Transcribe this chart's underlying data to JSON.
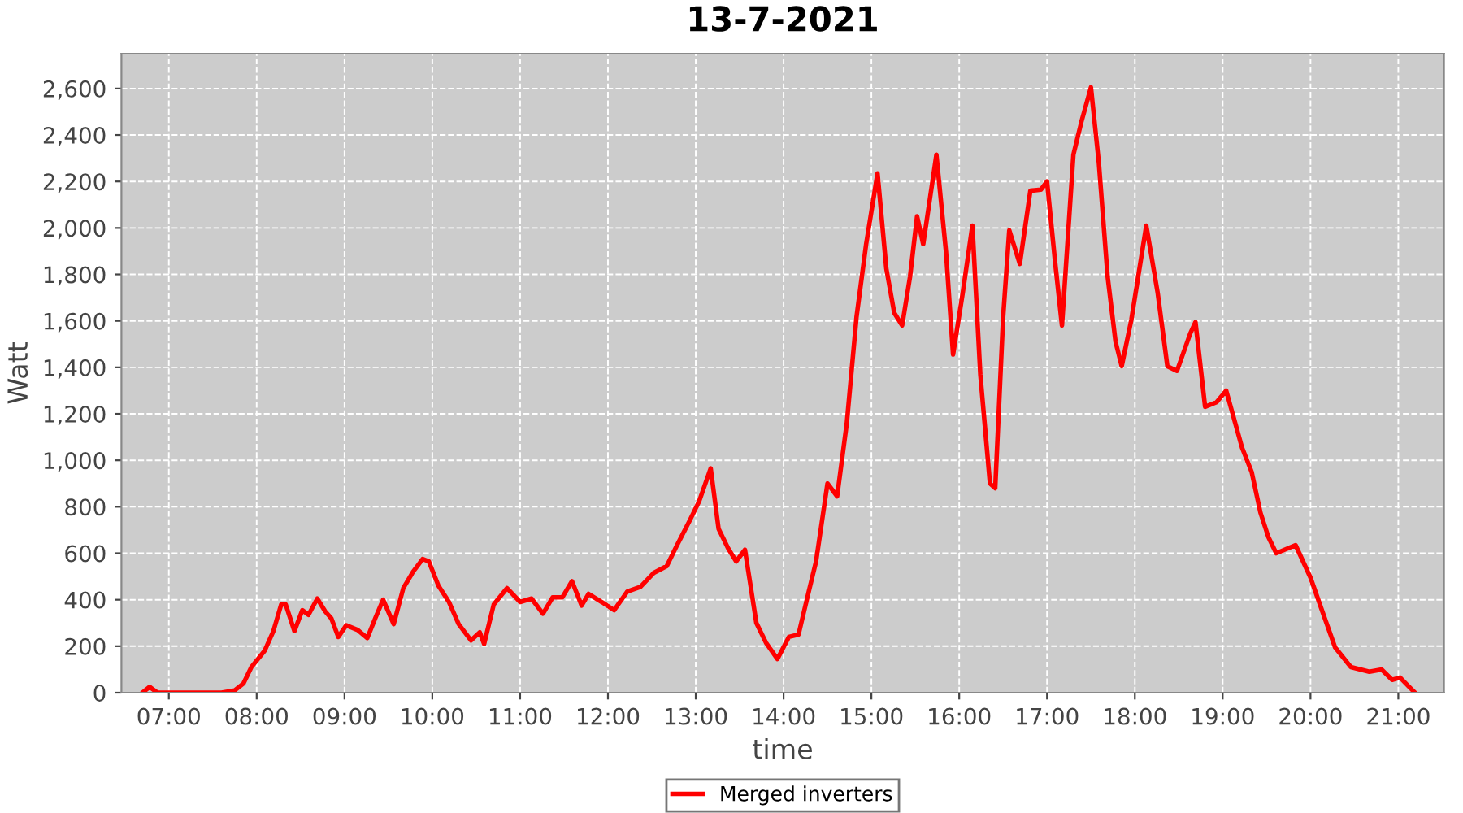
{
  "chart_data": {
    "type": "line",
    "title": "13-7-2021",
    "xlabel": "time",
    "ylabel": "Watt",
    "xlim": [
      6.46,
      21.52
    ],
    "ylim": [
      0,
      2750
    ],
    "xticks": [
      {
        "value": 7,
        "label": "07:00"
      },
      {
        "value": 8,
        "label": "08:00"
      },
      {
        "value": 9,
        "label": "09:00"
      },
      {
        "value": 10,
        "label": "10:00"
      },
      {
        "value": 11,
        "label": "11:00"
      },
      {
        "value": 12,
        "label": "12:00"
      },
      {
        "value": 13,
        "label": "13:00"
      },
      {
        "value": 14,
        "label": "14:00"
      },
      {
        "value": 15,
        "label": "15:00"
      },
      {
        "value": 16,
        "label": "16:00"
      },
      {
        "value": 17,
        "label": "17:00"
      },
      {
        "value": 18,
        "label": "18:00"
      },
      {
        "value": 19,
        "label": "19:00"
      },
      {
        "value": 20,
        "label": "20:00"
      },
      {
        "value": 21,
        "label": "21:00"
      }
    ],
    "yticks": [
      0,
      200,
      400,
      600,
      800,
      {
        "value": 1000,
        "label": "1,000"
      },
      {
        "value": 1200,
        "label": "1,200"
      },
      {
        "value": 1400,
        "label": "1,400"
      },
      {
        "value": 1600,
        "label": "1,600"
      },
      {
        "value": 1800,
        "label": "1,800"
      },
      {
        "value": 2000,
        "label": "2,000"
      },
      {
        "value": 2200,
        "label": "2,200"
      },
      {
        "value": 2400,
        "label": "2,400"
      },
      {
        "value": 2600,
        "label": "2,600"
      }
    ],
    "grid": true,
    "legend": "bottom",
    "marker": "none",
    "line_style": "solid",
    "series": [
      {
        "name": "Merged inverters",
        "color": "#ff0000",
        "x": [
          6.7,
          6.78,
          6.87,
          7.0,
          7.3,
          7.6,
          7.75,
          7.85,
          7.94,
          8.09,
          8.19,
          8.28,
          8.33,
          8.43,
          8.52,
          8.59,
          8.69,
          8.78,
          8.85,
          8.93,
          9.02,
          9.15,
          9.26,
          9.35,
          9.44,
          9.56,
          9.67,
          9.78,
          9.89,
          9.96,
          10.07,
          10.19,
          10.3,
          10.44,
          10.54,
          10.59,
          10.7,
          10.85,
          11.0,
          11.13,
          11.26,
          11.37,
          11.48,
          11.59,
          11.7,
          11.78,
          11.93,
          12.07,
          12.22,
          12.37,
          12.52,
          12.67,
          12.78,
          12.93,
          13.04,
          13.17,
          13.26,
          13.37,
          13.46,
          13.56,
          13.69,
          13.8,
          13.93,
          14.06,
          14.17,
          14.28,
          14.37,
          14.5,
          14.61,
          14.72,
          14.83,
          14.94,
          15.07,
          15.17,
          15.26,
          15.35,
          15.44,
          15.52,
          15.59,
          15.74,
          15.85,
          15.93,
          16.04,
          16.15,
          16.24,
          16.35,
          16.41,
          16.5,
          16.57,
          16.69,
          16.81,
          16.93,
          17.0,
          17.09,
          17.17,
          17.3,
          17.39,
          17.5,
          17.59,
          17.69,
          17.78,
          17.85,
          17.96,
          18.13,
          18.26,
          18.37,
          18.48,
          18.63,
          18.69,
          18.8,
          18.93,
          19.04,
          19.22,
          19.33,
          19.43,
          19.52,
          19.61,
          19.83,
          20.0,
          20.13,
          20.28,
          20.46,
          20.67,
          20.81,
          20.93,
          21.02,
          21.11,
          21.19
        ],
        "values": [
          0,
          25,
          0,
          0,
          0,
          0,
          10,
          40,
          110,
          180,
          265,
          380,
          380,
          265,
          355,
          335,
          405,
          350,
          320,
          240,
          290,
          270,
          235,
          320,
          400,
          295,
          450,
          520,
          575,
          565,
          460,
          390,
          295,
          225,
          260,
          210,
          380,
          450,
          390,
          405,
          340,
          410,
          410,
          480,
          375,
          425,
          390,
          355,
          435,
          455,
          515,
          545,
          630,
          740,
          825,
          965,
          705,
          620,
          565,
          615,
          300,
          215,
          145,
          240,
          250,
          425,
          565,
          900,
          845,
          1160,
          1615,
          1930,
          2235,
          1825,
          1635,
          1580,
          1790,
          2050,
          1930,
          2315,
          1895,
          1455,
          1720,
          2010,
          1370,
          900,
          880,
          1615,
          1990,
          1845,
          2160,
          2165,
          2200,
          1860,
          1580,
          2315,
          2455,
          2605,
          2280,
          1790,
          1510,
          1405,
          1605,
          2010,
          1720,
          1405,
          1385,
          1545,
          1595,
          1230,
          1250,
          1300,
          1055,
          950,
          775,
          670,
          600,
          635,
          495,
          355,
          195,
          110,
          90,
          100,
          55,
          65,
          30,
          0
        ]
      }
    ]
  }
}
